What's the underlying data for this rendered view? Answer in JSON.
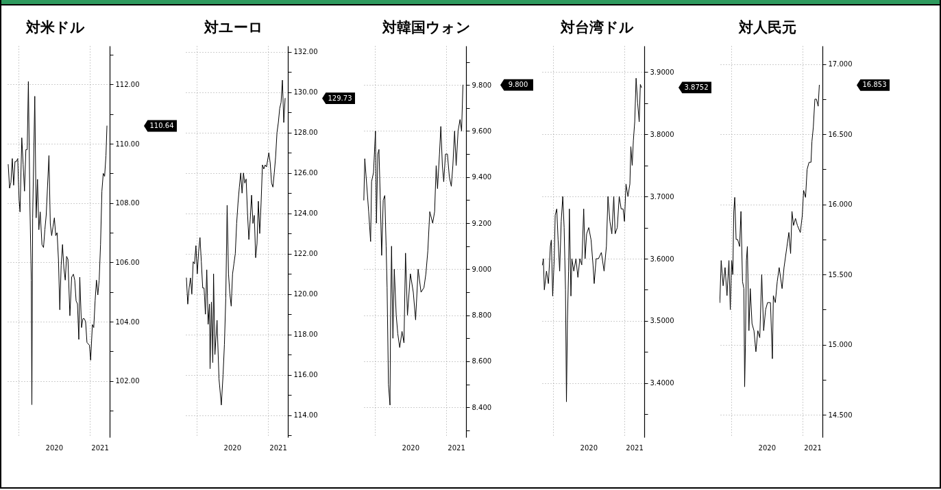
{
  "chart_data": [
    {
      "type": "line",
      "title": "対米ドル",
      "color": "#000000",
      "grid": true,
      "xlim": [
        "2019-11-01",
        "2021-04-14"
      ],
      "xticks": [
        {
          "value": "2020-01-01",
          "label": null
        },
        {
          "value": "2020-07-01",
          "label": "2020"
        },
        {
          "value": "2021-01-01",
          "label": null
        },
        {
          "value": "2021-02-22",
          "label": "2021"
        }
      ],
      "ylim": [
        100.1,
        113.3
      ],
      "yticks": [
        {
          "value": 101,
          "label": null
        },
        {
          "value": 102,
          "label": "102.00"
        },
        {
          "value": 103,
          "label": null
        },
        {
          "value": 104,
          "label": "104.00"
        },
        {
          "value": 105,
          "label": null
        },
        {
          "value": 106,
          "label": "106.00"
        },
        {
          "value": 107,
          "label": null
        },
        {
          "value": 108,
          "label": "108.00"
        },
        {
          "value": 109,
          "label": null
        },
        {
          "value": 110,
          "label": "110.00"
        },
        {
          "value": 111,
          "label": null
        },
        {
          "value": 112,
          "label": "112.00"
        },
        {
          "value": 113,
          "label": null
        }
      ],
      "annotations": [
        "110.64"
      ],
      "x": [
        "2019-11-08",
        "2019-11-15",
        "2019-11-22",
        "2019-11-29",
        "2019-12-06",
        "2019-12-13",
        "2019-12-20",
        "2019-12-27",
        "2020-01-03",
        "2020-01-08",
        "2020-01-17",
        "2020-01-24",
        "2020-01-31",
        "2020-02-07",
        "2020-02-14",
        "2020-02-20",
        "2020-02-28",
        "2020-03-06",
        "2020-03-09",
        "2020-03-13",
        "2020-03-24",
        "2020-03-31",
        "2020-04-07",
        "2020-04-14",
        "2020-04-21",
        "2020-04-30",
        "2020-05-08",
        "2020-05-15",
        "2020-05-22",
        "2020-06-05",
        "2020-06-12",
        "2020-06-19",
        "2020-06-26",
        "2020-07-03",
        "2020-07-10",
        "2020-07-17",
        "2020-07-24",
        "2020-07-31",
        "2020-08-07",
        "2020-08-14",
        "2020-08-21",
        "2020-08-28",
        "2020-09-04",
        "2020-09-11",
        "2020-09-21",
        "2020-09-30",
        "2020-10-09",
        "2020-10-16",
        "2020-10-23",
        "2020-10-30",
        "2020-11-06",
        "2020-11-11",
        "2020-11-20",
        "2020-11-27",
        "2020-12-04",
        "2020-12-11",
        "2020-12-18",
        "2020-12-31",
        "2021-01-06",
        "2021-01-15",
        "2021-01-22",
        "2021-01-29",
        "2021-02-05",
        "2021-02-12",
        "2021-02-19",
        "2021-02-26",
        "2021-03-05",
        "2021-03-12",
        "2021-03-19",
        "2021-03-26",
        "2021-03-31"
      ],
      "values": [
        109.3,
        108.5,
        108.7,
        109.5,
        108.6,
        109.4,
        109.4,
        109.5,
        108.1,
        107.7,
        110.2,
        109.3,
        108.4,
        109.8,
        109.8,
        112.1,
        107.9,
        105.4,
        101.2,
        107.5,
        111.6,
        107.5,
        108.8,
        107.1,
        107.7,
        106.6,
        106.5,
        107.1,
        107.6,
        109.6,
        107.3,
        106.9,
        107.2,
        107.5,
        106.9,
        107.0,
        106.1,
        104.4,
        105.9,
        106.6,
        105.8,
        105.4,
        106.2,
        106.1,
        104.2,
        105.5,
        105.6,
        105.4,
        104.7,
        104.6,
        103.4,
        105.5,
        103.8,
        104.1,
        104.1,
        104.0,
        103.3,
        103.2,
        102.7,
        103.9,
        103.8,
        104.7,
        105.4,
        104.9,
        105.4,
        106.6,
        108.4,
        109.0,
        108.9,
        109.6,
        110.6
      ]
    },
    {
      "type": "line",
      "title": "対ユーロ",
      "color": "#000000",
      "grid": true,
      "xlim": [
        "2019-11-01",
        "2021-04-14"
      ],
      "xticks": [
        {
          "value": "2020-01-01",
          "label": null
        },
        {
          "value": "2020-07-01",
          "label": "2020"
        },
        {
          "value": "2021-01-01",
          "label": null
        },
        {
          "value": "2021-02-22",
          "label": "2021"
        }
      ],
      "ylim": [
        112.9,
        132.3
      ],
      "yticks": [
        {
          "value": 113,
          "label": null
        },
        {
          "value": 114,
          "label": "114.00"
        },
        {
          "value": 115,
          "label": null
        },
        {
          "value": 116,
          "label": "116.00"
        },
        {
          "value": 117,
          "label": null
        },
        {
          "value": 118,
          "label": "118.00"
        },
        {
          "value": 119,
          "label": null
        },
        {
          "value": 120,
          "label": "120.00"
        },
        {
          "value": 121,
          "label": null
        },
        {
          "value": 122,
          "label": "122.00"
        },
        {
          "value": 123,
          "label": null
        },
        {
          "value": 124,
          "label": "124.00"
        },
        {
          "value": 125,
          "label": null
        },
        {
          "value": 126,
          "label": "126.00"
        },
        {
          "value": 127,
          "label": null
        },
        {
          "value": 128,
          "label": "128.00"
        },
        {
          "value": 129,
          "label": null
        },
        {
          "value": 130,
          "label": "130.00"
        },
        {
          "value": 131,
          "label": null
        },
        {
          "value": 132,
          "label": "132.00"
        }
      ],
      "annotations": [
        "129.73"
      ],
      "x": [
        "2019-11-08",
        "2019-11-15",
        "2019-11-22",
        "2019-11-29",
        "2019-12-06",
        "2019-12-13",
        "2019-12-20",
        "2019-12-27",
        "2020-01-03",
        "2020-01-10",
        "2020-01-17",
        "2020-01-24",
        "2020-01-31",
        "2020-02-07",
        "2020-02-14",
        "2020-02-21",
        "2020-02-28",
        "2020-03-06",
        "2020-03-09",
        "2020-03-16",
        "2020-03-23",
        "2020-03-27",
        "2020-04-03",
        "2020-04-14",
        "2020-04-24",
        "2020-05-06",
        "2020-05-15",
        "2020-05-22",
        "2020-05-29",
        "2020-06-05",
        "2020-06-12",
        "2020-06-19",
        "2020-06-26",
        "2020-07-03",
        "2020-07-10",
        "2020-07-17",
        "2020-07-24",
        "2020-07-31",
        "2020-08-07",
        "2020-08-14",
        "2020-08-21",
        "2020-08-28",
        "2020-09-04",
        "2020-09-11",
        "2020-09-18",
        "2020-09-25",
        "2020-10-02",
        "2020-10-09",
        "2020-10-16",
        "2020-10-23",
        "2020-10-30",
        "2020-11-06",
        "2020-11-13",
        "2020-11-20",
        "2020-11-27",
        "2020-12-04",
        "2020-12-11",
        "2020-12-18",
        "2020-12-25",
        "2021-01-06",
        "2021-01-13",
        "2021-01-20",
        "2021-01-27",
        "2021-02-03",
        "2021-02-10",
        "2021-02-17",
        "2021-02-24",
        "2021-03-03",
        "2021-03-10",
        "2021-03-17",
        "2021-03-24",
        "2021-03-31"
      ],
      "values": [
        120.8,
        119.5,
        120.3,
        120.8,
        120.0,
        121.6,
        121.5,
        122.4,
        121.0,
        122.1,
        122.8,
        121.6,
        120.3,
        120.3,
        119.0,
        121.2,
        118.5,
        119.5,
        116.3,
        119.6,
        116.6,
        121.0,
        117.0,
        118.7,
        115.8,
        114.5,
        116.0,
        117.5,
        119.8,
        124.4,
        121.0,
        120.0,
        119.4,
        121.0,
        121.5,
        122.0,
        123.5,
        124.5,
        125.3,
        126.0,
        125.0,
        126.0,
        125.5,
        125.7,
        124.0,
        122.7,
        123.7,
        124.9,
        123.5,
        123.9,
        121.8,
        122.5,
        124.6,
        123.0,
        124.5,
        126.4,
        126.2,
        126.4,
        126.3,
        127.0,
        126.5,
        125.5,
        125.3,
        126.0,
        126.8,
        128.0,
        128.5,
        129.2,
        129.5,
        130.6,
        128.5,
        129.7
      ]
    },
    {
      "type": "line",
      "title": "対韓国ウォン",
      "color": "#000000",
      "grid": true,
      "xlim": [
        "2019-11-01",
        "2021-04-14"
      ],
      "xticks": [
        {
          "value": "2020-01-01",
          "label": null
        },
        {
          "value": "2020-07-01",
          "label": "2020"
        },
        {
          "value": "2021-01-01",
          "label": null
        },
        {
          "value": "2021-02-22",
          "label": "2021"
        }
      ],
      "ylim": [
        8.27,
        9.97
      ],
      "yticks": [
        {
          "value": 8.3,
          "label": null
        },
        {
          "value": 8.4,
          "label": "8.400"
        },
        {
          "value": 8.5,
          "label": null
        },
        {
          "value": 8.6,
          "label": "8.600"
        },
        {
          "value": 8.7,
          "label": null
        },
        {
          "value": 8.8,
          "label": "8.800"
        },
        {
          "value": 8.9,
          "label": null
        },
        {
          "value": 9.0,
          "label": "9.000"
        },
        {
          "value": 9.1,
          "label": null
        },
        {
          "value": 9.2,
          "label": "9.200"
        },
        {
          "value": 9.3,
          "label": null
        },
        {
          "value": 9.4,
          "label": "9.400"
        },
        {
          "value": 9.5,
          "label": null
        },
        {
          "value": 9.6,
          "label": "9.600"
        },
        {
          "value": 9.7,
          "label": null
        },
        {
          "value": 9.8,
          "label": "9.800"
        },
        {
          "value": 9.9,
          "label": null
        }
      ],
      "annotations": [
        "9.800"
      ],
      "x": [
        "2019-11-04",
        "2019-11-09",
        "2019-11-29",
        "2019-12-09",
        "2019-12-14",
        "2019-12-24",
        "2020-01-03",
        "2020-01-08",
        "2020-01-15",
        "2020-01-21",
        "2020-01-28",
        "2020-02-04",
        "2020-02-12",
        "2020-02-20",
        "2020-02-27",
        "2020-03-03",
        "2020-03-10",
        "2020-03-18",
        "2020-03-21",
        "2020-03-26",
        "2020-04-02",
        "2020-04-09",
        "2020-04-19",
        "2020-04-27",
        "2020-05-07",
        "2020-05-19",
        "2020-05-29",
        "2020-06-06",
        "2020-06-16",
        "2020-07-01",
        "2020-07-16",
        "2020-07-28",
        "2020-08-10",
        "2020-08-25",
        "2020-09-09",
        "2020-09-19",
        "2020-09-29",
        "2020-10-09",
        "2020-10-24",
        "2020-11-03",
        "2020-11-11",
        "2020-11-18",
        "2020-11-28",
        "2020-12-05",
        "2020-12-13",
        "2020-12-20",
        "2020-12-29",
        "2021-01-08",
        "2021-01-18",
        "2021-01-28",
        "2021-02-05",
        "2021-02-14",
        "2021-02-22",
        "2021-03-04",
        "2021-03-14",
        "2021-03-22",
        "2021-03-29"
      ],
      "values": [
        9.3,
        9.48,
        9.25,
        9.12,
        9.38,
        9.42,
        9.6,
        9.2,
        9.5,
        9.52,
        9.3,
        9.06,
        9.3,
        9.32,
        9.1,
        8.92,
        8.5,
        8.41,
        8.8,
        9.1,
        8.7,
        9.0,
        8.8,
        8.72,
        8.66,
        8.73,
        8.68,
        9.07,
        8.8,
        8.98,
        8.9,
        8.78,
        9.0,
        8.9,
        8.92,
        8.98,
        9.08,
        9.25,
        9.2,
        9.25,
        9.45,
        9.35,
        9.5,
        9.62,
        9.45,
        9.38,
        9.5,
        9.5,
        9.4,
        9.36,
        9.45,
        9.6,
        9.45,
        9.6,
        9.65,
        9.6,
        9.8
      ]
    },
    {
      "type": "line",
      "title": "対台湾ドル",
      "color": "#000000",
      "grid": true,
      "xlim": [
        "2019-11-01",
        "2021-04-14"
      ],
      "xticks": [
        {
          "value": "2020-01-01",
          "label": null
        },
        {
          "value": "2020-07-01",
          "label": "2020"
        },
        {
          "value": "2021-01-01",
          "label": null
        },
        {
          "value": "2021-02-22",
          "label": "2021"
        }
      ],
      "ylim": [
        3.313,
        3.942
      ],
      "yticks": [
        {
          "value": 3.35,
          "label": null
        },
        {
          "value": 3.4,
          "label": "3.4000"
        },
        {
          "value": 3.45,
          "label": null
        },
        {
          "value": 3.5,
          "label": "3.5000"
        },
        {
          "value": 3.55,
          "label": null
        },
        {
          "value": 3.6,
          "label": "3.6000"
        },
        {
          "value": 3.65,
          "label": null
        },
        {
          "value": 3.7,
          "label": "3.7000"
        },
        {
          "value": 3.75,
          "label": null
        },
        {
          "value": 3.8,
          "label": "3.8000"
        },
        {
          "value": 3.85,
          "label": null
        },
        {
          "value": 3.9,
          "label": "3.9000"
        }
      ],
      "annotations": [
        "3.8752"
      ],
      "x": [
        "2019-11-06",
        "2019-11-11",
        "2019-11-16",
        "2019-11-27",
        "2019-12-07",
        "2019-12-17",
        "2019-12-22",
        "2019-12-29",
        "2020-01-06",
        "2020-01-11",
        "2020-01-19",
        "2020-01-26",
        "2020-02-03",
        "2020-02-11",
        "2020-02-19",
        "2020-02-26",
        "2020-03-04",
        "2020-03-09",
        "2020-03-14",
        "2020-03-20",
        "2020-03-24",
        "2020-04-01",
        "2020-04-06",
        "2020-04-16",
        "2020-04-27",
        "2020-05-07",
        "2020-05-17",
        "2020-05-27",
        "2020-06-06",
        "2020-06-13",
        "2020-06-21",
        "2020-07-02",
        "2020-07-14",
        "2020-07-24",
        "2020-07-30",
        "2020-08-09",
        "2020-08-21",
        "2020-09-05",
        "2020-09-19",
        "2020-10-01",
        "2020-10-09",
        "2020-10-19",
        "2020-10-29",
        "2020-11-08",
        "2020-11-15",
        "2020-11-26",
        "2020-12-06",
        "2020-12-16",
        "2020-12-26",
        "2021-01-02",
        "2021-01-10",
        "2021-01-20",
        "2021-01-30",
        "2021-02-04",
        "2021-02-11",
        "2021-02-17",
        "2021-02-24",
        "2021-03-03",
        "2021-03-11",
        "2021-03-19",
        "2021-03-25",
        "2021-03-31"
      ],
      "values": [
        3.59,
        3.6,
        3.55,
        3.58,
        3.56,
        3.62,
        3.63,
        3.54,
        3.6,
        3.67,
        3.68,
        3.63,
        3.58,
        3.66,
        3.7,
        3.65,
        3.55,
        3.37,
        3.5,
        3.58,
        3.68,
        3.54,
        3.6,
        3.58,
        3.6,
        3.57,
        3.6,
        3.59,
        3.68,
        3.6,
        3.64,
        3.65,
        3.63,
        3.59,
        3.56,
        3.6,
        3.6,
        3.61,
        3.58,
        3.62,
        3.7,
        3.66,
        3.64,
        3.7,
        3.64,
        3.65,
        3.7,
        3.68,
        3.68,
        3.66,
        3.72,
        3.7,
        3.72,
        3.78,
        3.75,
        3.79,
        3.82,
        3.89,
        3.85,
        3.82,
        3.88,
        3.875
      ]
    },
    {
      "type": "line",
      "title": "対人民元",
      "color": "#000000",
      "grid": true,
      "xlim": [
        "2019-11-01",
        "2021-04-14"
      ],
      "xticks": [
        {
          "value": "2020-01-01",
          "label": null
        },
        {
          "value": "2020-07-01",
          "label": "2020"
        },
        {
          "value": "2021-01-01",
          "label": null
        },
        {
          "value": "2021-02-22",
          "label": "2021"
        }
      ],
      "ylim": [
        14.34,
        17.13
      ],
      "yticks": [
        {
          "value": 14.5,
          "label": "14.500"
        },
        {
          "value": 14.75,
          "label": null
        },
        {
          "value": 15.0,
          "label": "15.000"
        },
        {
          "value": 15.25,
          "label": null
        },
        {
          "value": 15.5,
          "label": "15.500"
        },
        {
          "value": 15.75,
          "label": null
        },
        {
          "value": 16.0,
          "label": "16.000"
        },
        {
          "value": 16.25,
          "label": null
        },
        {
          "value": 16.5,
          "label": "16.500"
        },
        {
          "value": 16.75,
          "label": null
        },
        {
          "value": 17.0,
          "label": "17.000"
        }
      ],
      "annotations": [
        "16.853"
      ],
      "x": [
        "2019-11-02",
        "2019-11-09",
        "2019-11-19",
        "2019-11-29",
        "2019-12-09",
        "2019-12-19",
        "2019-12-26",
        "2020-01-02",
        "2020-01-08",
        "2020-01-13",
        "2020-01-18",
        "2020-01-25",
        "2020-02-02",
        "2020-02-12",
        "2020-02-19",
        "2020-02-27",
        "2020-03-05",
        "2020-03-09",
        "2020-03-13",
        "2020-03-18",
        "2020-03-23",
        "2020-03-31",
        "2020-04-07",
        "2020-04-16",
        "2020-04-26",
        "2020-05-06",
        "2020-05-16",
        "2020-05-26",
        "2020-06-05",
        "2020-06-15",
        "2020-06-25",
        "2020-07-05",
        "2020-07-20",
        "2020-07-30",
        "2020-08-04",
        "2020-08-14",
        "2020-08-24",
        "2020-09-03",
        "2020-09-18",
        "2020-09-28",
        "2020-10-13",
        "2020-10-23",
        "2020-11-01",
        "2020-11-08",
        "2020-11-16",
        "2020-11-26",
        "2020-12-06",
        "2020-12-21",
        "2020-12-31",
        "2021-01-07",
        "2021-01-17",
        "2021-01-25",
        "2021-02-04",
        "2021-02-14",
        "2021-02-19",
        "2021-02-26",
        "2021-03-06",
        "2021-03-14",
        "2021-03-23",
        "2021-03-29"
      ],
      "values": [
        15.3,
        15.6,
        15.42,
        15.55,
        15.35,
        15.6,
        15.25,
        15.6,
        15.5,
        15.95,
        16.05,
        15.75,
        15.75,
        15.7,
        15.95,
        15.45,
        15.4,
        14.7,
        15.0,
        15.6,
        15.7,
        15.1,
        15.4,
        15.15,
        15.1,
        14.95,
        15.1,
        15.05,
        15.5,
        15.1,
        15.25,
        15.3,
        15.3,
        14.9,
        15.35,
        15.3,
        15.45,
        15.55,
        15.4,
        15.55,
        15.7,
        15.8,
        15.65,
        15.95,
        15.85,
        15.9,
        15.85,
        15.8,
        15.92,
        16.1,
        16.05,
        16.25,
        16.3,
        16.3,
        16.45,
        16.55,
        16.75,
        16.75,
        16.7,
        16.85
      ]
    }
  ]
}
